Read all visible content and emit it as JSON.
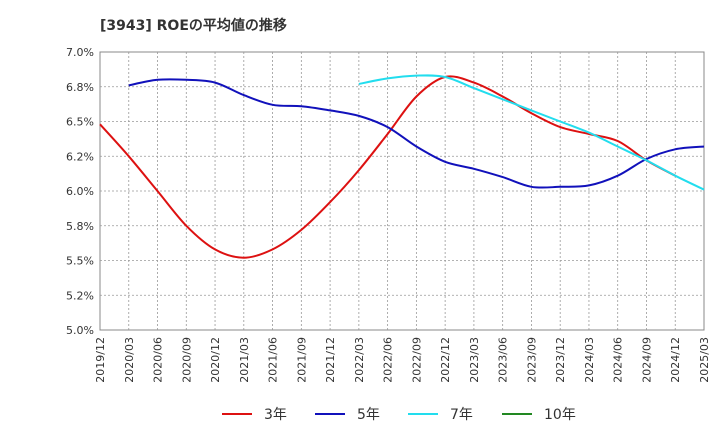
{
  "chart_data": {
    "type": "line",
    "title": "[3943]  ROEの平均値の推移",
    "xlabel": "",
    "ylabel": "",
    "ylim": [
      5.0,
      7.0
    ],
    "y_ticks": [
      5.0,
      5.25,
      5.5,
      5.75,
      6.0,
      6.25,
      6.5,
      6.75,
      7.0
    ],
    "y_tick_labels": [
      "5.0%",
      "5.2%",
      "5.5%",
      "5.8%",
      "6.0%",
      "6.2%",
      "6.5%",
      "6.8%",
      "7.0%"
    ],
    "x_tick_labels": [
      "2019/12",
      "2020/03",
      "2020/06",
      "2020/09",
      "2020/12",
      "2021/03",
      "2021/06",
      "2021/09",
      "2021/12",
      "2022/03",
      "2022/06",
      "2022/09",
      "2022/12",
      "2023/03",
      "2023/06",
      "2023/09",
      "2023/12",
      "2024/03",
      "2024/06",
      "2024/09",
      "2024/12",
      "2025/03"
    ],
    "series": [
      {
        "name": "3年",
        "color": "#dd1111",
        "start_index": 0,
        "values": [
          6.48,
          6.25,
          6.0,
          5.75,
          5.58,
          5.52,
          5.58,
          5.72,
          5.92,
          6.15,
          6.41,
          6.68,
          6.82,
          6.78,
          6.68,
          6.56,
          6.46,
          6.41,
          6.36,
          6.22,
          6.11
        ]
      },
      {
        "name": "5年",
        "color": "#1111bb",
        "start_index": 1,
        "values": [
          6.76,
          6.8,
          6.8,
          6.78,
          6.69,
          6.62,
          6.61,
          6.58,
          6.54,
          6.46,
          6.32,
          6.21,
          6.16,
          6.1,
          6.03,
          6.03,
          6.04,
          6.11,
          6.23,
          6.3,
          6.32
        ]
      },
      {
        "name": "7年",
        "color": "#22ddee",
        "start_index": 9,
        "values": [
          6.77,
          6.81,
          6.83,
          6.82,
          6.74,
          6.66,
          6.58,
          6.5,
          6.42,
          6.32,
          6.22,
          6.11,
          6.01
        ]
      },
      {
        "name": "10年",
        "color": "#228822",
        "start_index": 0,
        "values": []
      }
    ]
  }
}
